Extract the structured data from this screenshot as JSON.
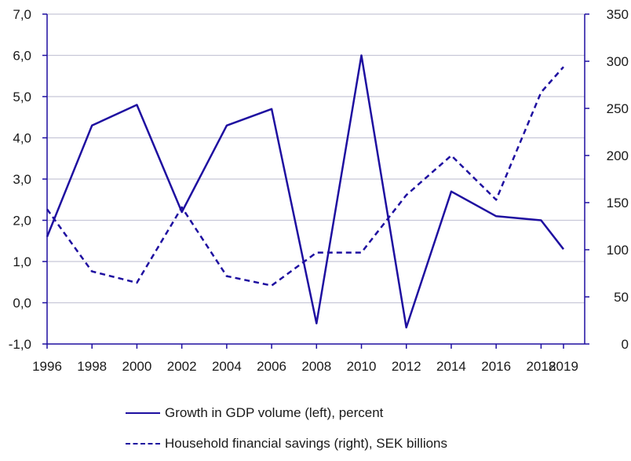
{
  "chart_data": {
    "type": "line",
    "title": "",
    "x": [
      1996,
      1997,
      1998,
      1999,
      2000,
      2001,
      2002,
      2003,
      2004,
      2005,
      2006,
      2007,
      2008,
      2009,
      2010,
      2011,
      2012,
      2013,
      2014,
      2015,
      2016,
      2017,
      2018,
      2019
    ],
    "x_tick_labels": [
      "1996",
      "1998",
      "2000",
      "2002",
      "2004",
      "2006",
      "2008",
      "2010",
      "2012",
      "2014",
      "2016",
      "2018",
      "2019"
    ],
    "x_tick_values": [
      1996,
      1998,
      2000,
      2002,
      2004,
      2006,
      2008,
      2010,
      2012,
      2014,
      2016,
      2018,
      2019
    ],
    "y_left": {
      "range": [
        -1.0,
        7.0
      ],
      "ticks": [
        -1,
        0,
        1,
        2,
        3,
        4,
        5,
        6,
        7
      ],
      "tick_labels": [
        "-1,0",
        "0,0",
        "1,0",
        "2,0",
        "3,0",
        "4,0",
        "5,0",
        "6,0",
        "7,0"
      ]
    },
    "y_right": {
      "range": [
        0,
        350
      ],
      "ticks": [
        0,
        50,
        100,
        150,
        200,
        250,
        300,
        350
      ],
      "tick_labels": [
        "0",
        "50",
        "100",
        "150",
        "200",
        "250",
        "300",
        "350"
      ]
    },
    "grid": true,
    "series": [
      {
        "name": "Growth in GDP volume (left), percent",
        "axis": "left",
        "style": "solid",
        "x": [
          1996,
          1998,
          2000,
          2002,
          2004,
          2006,
          2008,
          2010,
          2012,
          2014,
          2016,
          2018,
          2019
        ],
        "values": [
          1.6,
          4.3,
          4.8,
          2.2,
          4.3,
          4.7,
          -0.5,
          6.0,
          -0.6,
          2.7,
          2.1,
          2.0,
          1.3
        ]
      },
      {
        "name": "Household financial savings (right), SEK billions",
        "axis": "right",
        "style": "dashed",
        "x": [
          1996,
          1998,
          2000,
          2002,
          2004,
          2006,
          2008,
          2010,
          2012,
          2014,
          2016,
          2018,
          2019
        ],
        "values": [
          143,
          77,
          65,
          145,
          72,
          62,
          97,
          97,
          158,
          200,
          153,
          267,
          294
        ]
      }
    ],
    "colors": {
      "line": "#1e0fa0",
      "grid": "#c8c8d8",
      "axis": "#1e0fa0"
    }
  },
  "legend": {
    "items": [
      {
        "label": "Growth in GDP volume (left), percent"
      },
      {
        "label": "Household financial savings (right), SEK billions"
      }
    ]
  }
}
